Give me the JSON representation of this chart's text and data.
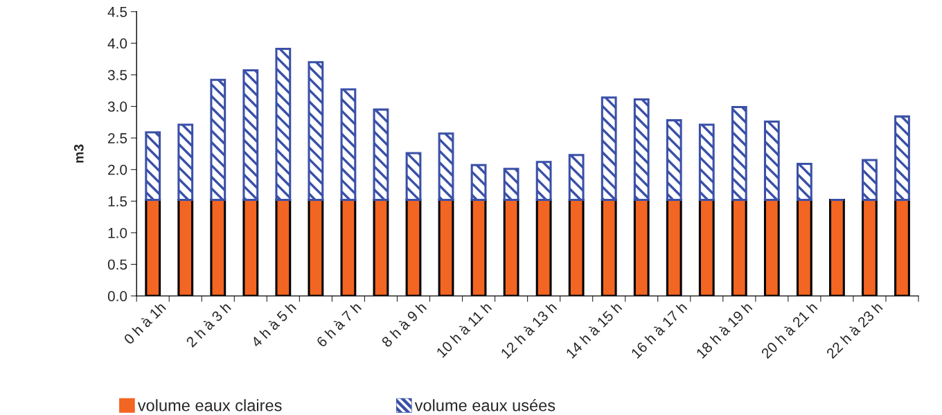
{
  "chart_data": {
    "type": "bar",
    "stacked": true,
    "ylabel": "m3",
    "categories": [
      "0 h à 1h",
      null,
      "2 h à 3 h",
      null,
      "4 h à 5 h",
      null,
      "6 h à 7 h",
      null,
      "8 h à 9 h",
      null,
      "10 h à 11 h",
      null,
      "12 h à 13 h",
      null,
      "14 h à 15 h",
      null,
      "16 h à 17 h",
      null,
      "18 h à 19 h",
      null,
      "20 h à 21 h",
      null,
      "22 h à 23 h",
      null
    ],
    "series": [
      {
        "name": "volume eaux claires",
        "color": "#f26522",
        "values": [
          1.52,
          1.52,
          1.52,
          1.52,
          1.52,
          1.52,
          1.52,
          1.52,
          1.52,
          1.52,
          1.52,
          1.52,
          1.52,
          1.52,
          1.52,
          1.52,
          1.52,
          1.52,
          1.52,
          1.52,
          1.52,
          1.52,
          1.52,
          1.52
        ]
      },
      {
        "name": "volume eaux usées",
        "color": "#3a50a8",
        "values": [
          1.07,
          1.19,
          1.9,
          2.05,
          2.39,
          2.18,
          1.75,
          1.43,
          0.74,
          1.05,
          0.55,
          0.49,
          0.6,
          0.71,
          1.62,
          1.59,
          1.26,
          1.19,
          1.47,
          1.24,
          0.57,
          0,
          0.63,
          1.32
        ]
      }
    ],
    "ylim": [
      0,
      4.5
    ],
    "yticks": [
      {
        "value": 0,
        "label": "0.0"
      },
      {
        "value": 0.5,
        "label": "0.5"
      },
      {
        "value": 1,
        "label": "1.0"
      },
      {
        "value": 1.5,
        "label": "1.5"
      },
      {
        "value": 2,
        "label": "2.0"
      },
      {
        "value": 2.5,
        "label": "2.5"
      },
      {
        "value": 3,
        "label": "3.0"
      },
      {
        "value": 3.5,
        "label": "3.5"
      },
      {
        "value": 4,
        "label": "4.0"
      },
      {
        "value": 4.5,
        "label": "4.5"
      }
    ],
    "grid": false,
    "legend": "bottom"
  }
}
